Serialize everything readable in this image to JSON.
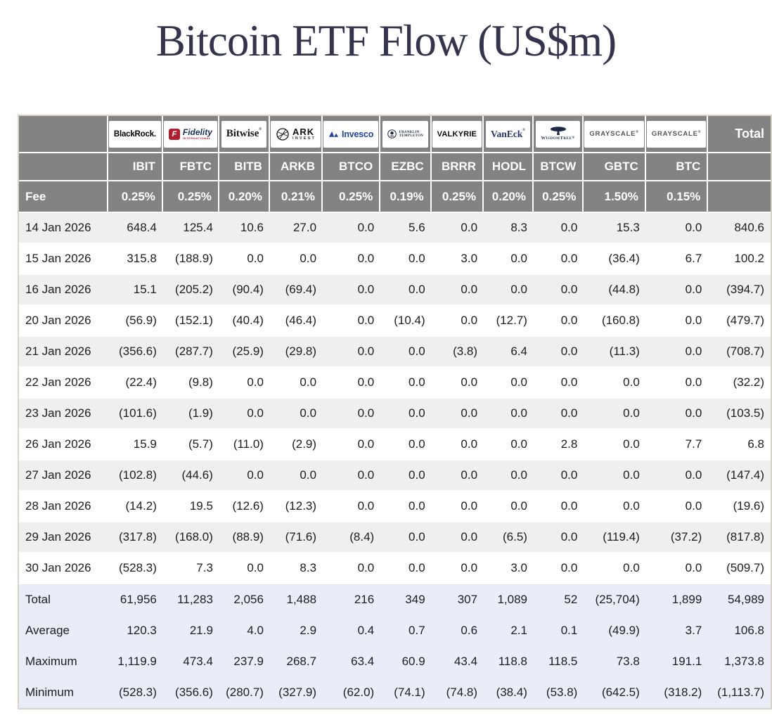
{
  "title": "Bitcoin ETF Flow (US$m)",
  "colors": {
    "title_navy": "#34344e",
    "header_gray": "#838383",
    "row_alt_gray": "#efefef",
    "summary_blue": "#e9edf8",
    "negative_red": "#f23a2c",
    "table_border_beige": "#d9d3c7"
  },
  "table": {
    "fee_label": "Fee",
    "total_label": "Total",
    "providers": [
      {
        "name": "BlackRock",
        "ticker": "IBIT",
        "fee": "0.25%",
        "logo": {
          "style": "blackrock",
          "text": "BlackRock."
        }
      },
      {
        "name": "Fidelity",
        "ticker": "FBTC",
        "fee": "0.25%",
        "logo": {
          "style": "fidelity",
          "mark": "F",
          "text": "Fidelity",
          "subtext": "INTERNATIONAL"
        }
      },
      {
        "name": "Bitwise",
        "ticker": "BITB",
        "fee": "0.20%",
        "logo": {
          "style": "bitwise",
          "text": "Bitwise",
          "reg": "®"
        }
      },
      {
        "name": "ARK Invest",
        "ticker": "ARKB",
        "fee": "0.21%",
        "logo": {
          "style": "ark",
          "text": "ARK",
          "subtext": "INVEST"
        }
      },
      {
        "name": "Invesco",
        "ticker": "BTCO",
        "fee": "0.25%",
        "logo": {
          "style": "invesco",
          "text": "Invesco"
        }
      },
      {
        "name": "Franklin Templeton",
        "ticker": "EZBC",
        "fee": "0.19%",
        "logo": {
          "style": "franklin",
          "text": "FRANKLIN",
          "subtext": "TEMPLETON"
        }
      },
      {
        "name": "Valkyrie",
        "ticker": "BRRR",
        "fee": "0.25%",
        "logo": {
          "style": "valkyrie",
          "text": "VALKYRIE"
        }
      },
      {
        "name": "VanEck",
        "ticker": "HODL",
        "fee": "0.20%",
        "logo": {
          "style": "vaneck",
          "text": "VanEck",
          "reg": "®"
        }
      },
      {
        "name": "WisdomTree",
        "ticker": "BTCW",
        "fee": "0.25%",
        "logo": {
          "style": "wisdomtree",
          "text": "WisdomTree",
          "reg": "®"
        }
      },
      {
        "name": "Grayscale",
        "ticker": "GBTC",
        "fee": "1.50%",
        "logo": {
          "style": "grayscale",
          "text": "GRAYSCALE",
          "reg": "®"
        }
      },
      {
        "name": "Grayscale",
        "ticker": "BTC",
        "fee": "0.15%",
        "logo": {
          "style": "grayscale",
          "text": "GRAYSCALE",
          "reg": "®"
        }
      }
    ],
    "rows": [
      {
        "date": "14 Jan 2026",
        "values": [
          "648.4",
          "125.4",
          "10.6",
          "27.0",
          "0.0",
          "5.6",
          "0.0",
          "8.3",
          "0.0",
          "15.3",
          "0.0"
        ],
        "total": "840.6"
      },
      {
        "date": "15 Jan 2026",
        "values": [
          "315.8",
          "(188.9)",
          "0.0",
          "0.0",
          "0.0",
          "0.0",
          "3.0",
          "0.0",
          "0.0",
          "(36.4)",
          "6.7"
        ],
        "total": "100.2"
      },
      {
        "date": "16 Jan 2026",
        "values": [
          "15.1",
          "(205.2)",
          "(90.4)",
          "(69.4)",
          "0.0",
          "0.0",
          "0.0",
          "0.0",
          "0.0",
          "(44.8)",
          "0.0"
        ],
        "total": "(394.7)"
      },
      {
        "date": "20 Jan 2026",
        "values": [
          "(56.9)",
          "(152.1)",
          "(40.4)",
          "(46.4)",
          "0.0",
          "(10.4)",
          "0.0",
          "(12.7)",
          "0.0",
          "(160.8)",
          "0.0"
        ],
        "total": "(479.7)"
      },
      {
        "date": "21 Jan 2026",
        "values": [
          "(356.6)",
          "(287.7)",
          "(25.9)",
          "(29.8)",
          "0.0",
          "0.0",
          "(3.8)",
          "6.4",
          "0.0",
          "(11.3)",
          "0.0"
        ],
        "total": "(708.7)"
      },
      {
        "date": "22 Jan 2026",
        "values": [
          "(22.4)",
          "(9.8)",
          "0.0",
          "0.0",
          "0.0",
          "0.0",
          "0.0",
          "0.0",
          "0.0",
          "0.0",
          "0.0"
        ],
        "total": "(32.2)"
      },
      {
        "date": "23 Jan 2026",
        "values": [
          "(101.6)",
          "(1.9)",
          "0.0",
          "0.0",
          "0.0",
          "0.0",
          "0.0",
          "0.0",
          "0.0",
          "0.0",
          "0.0"
        ],
        "total": "(103.5)"
      },
      {
        "date": "26 Jan 2026",
        "values": [
          "15.9",
          "(5.7)",
          "(11.0)",
          "(2.9)",
          "0.0",
          "0.0",
          "0.0",
          "0.0",
          "2.8",
          "0.0",
          "7.7"
        ],
        "total": "6.8"
      },
      {
        "date": "27 Jan 2026",
        "values": [
          "(102.8)",
          "(44.6)",
          "0.0",
          "0.0",
          "0.0",
          "0.0",
          "0.0",
          "0.0",
          "0.0",
          "0.0",
          "0.0"
        ],
        "total": "(147.4)"
      },
      {
        "date": "28 Jan 2026",
        "values": [
          "(14.2)",
          "19.5",
          "(12.6)",
          "(12.3)",
          "0.0",
          "0.0",
          "0.0",
          "0.0",
          "0.0",
          "0.0",
          "0.0"
        ],
        "total": "(19.6)"
      },
      {
        "date": "29 Jan 2026",
        "values": [
          "(317.8)",
          "(168.0)",
          "(88.9)",
          "(71.6)",
          "(8.4)",
          "0.0",
          "0.0",
          "(6.5)",
          "0.0",
          "(119.4)",
          "(37.2)"
        ],
        "total": "(817.8)"
      },
      {
        "date": "30 Jan 2026",
        "values": [
          "(528.3)",
          "7.3",
          "0.0",
          "8.3",
          "0.0",
          "0.0",
          "0.0",
          "3.0",
          "0.0",
          "0.0",
          "0.0"
        ],
        "total": "(509.7)"
      }
    ],
    "summary": [
      {
        "label": "Total",
        "values": [
          "61,956",
          "11,283",
          "2,056",
          "1,488",
          "216",
          "349",
          "307",
          "1,089",
          "52",
          "(25,704)",
          "1,899"
        ],
        "total": "54,989"
      },
      {
        "label": "Average",
        "values": [
          "120.3",
          "21.9",
          "4.0",
          "2.9",
          "0.4",
          "0.7",
          "0.6",
          "2.1",
          "0.1",
          "(49.9)",
          "3.7"
        ],
        "total": "106.8"
      },
      {
        "label": "Maximum",
        "values": [
          "1,119.9",
          "473.4",
          "237.9",
          "268.7",
          "63.4",
          "60.9",
          "43.4",
          "118.8",
          "118.5",
          "73.8",
          "191.1"
        ],
        "total": "1,373.8"
      },
      {
        "label": "Minimum",
        "values": [
          "(528.3)",
          "(356.6)",
          "(280.7)",
          "(327.9)",
          "(62.0)",
          "(74.1)",
          "(74.8)",
          "(38.4)",
          "(53.8)",
          "(642.5)",
          "(318.2)"
        ],
        "total": "(1,113.7)"
      }
    ]
  }
}
